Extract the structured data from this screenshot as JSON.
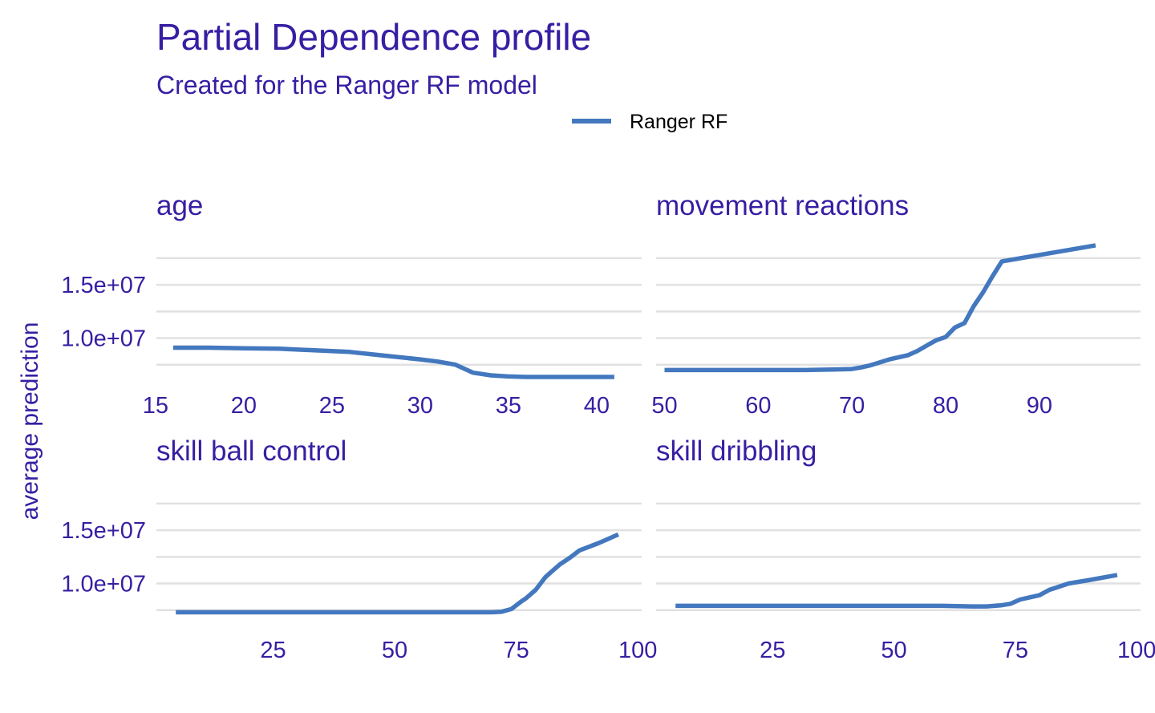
{
  "title": "Partial Dependence profile",
  "subtitle": "Created for the Ranger RF model",
  "ylabel": "average prediction",
  "legend": {
    "label": "Ranger RF",
    "color": "#4378bf",
    "position": "top"
  },
  "chart_data": {
    "type": "line",
    "title": "Partial Dependence profile",
    "subtitle": "Created for the Ranger RF model",
    "ylabel": "average prediction",
    "series_name": "Ranger RF",
    "color": "#4378bf",
    "grid": true,
    "ylim": [
      5750000,
      19900000
    ],
    "yticks": [
      {
        "value": 10000000,
        "label": "1.0e+07"
      },
      {
        "value": 15000000,
        "label": "1.5e+07"
      }
    ],
    "ygrid": [
      7500000,
      10000000,
      12500000,
      15000000,
      17500000
    ],
    "panels": [
      {
        "title": "age",
        "xlim": [
          15.05,
          42.55
        ],
        "xticks": [
          15,
          20,
          25,
          30,
          35,
          40
        ],
        "x": [
          16,
          18,
          20,
          22,
          24,
          26,
          28,
          30,
          31,
          32,
          33,
          34,
          35,
          36,
          37,
          38,
          39,
          40,
          41
        ],
        "y": [
          9100000,
          9100000,
          9050000,
          9000000,
          8850000,
          8700000,
          8350000,
          8000000,
          7800000,
          7500000,
          6750000,
          6500000,
          6400000,
          6350000,
          6350000,
          6350000,
          6350000,
          6350000,
          6350000
        ]
      },
      {
        "title": "movement  reactions",
        "xlim": [
          49.1,
          100.8
        ],
        "xticks": [
          50,
          60,
          70,
          80,
          90
        ],
        "x": [
          50,
          55,
          60,
          65,
          68,
          70,
          71,
          72,
          74,
          76,
          77,
          78,
          79,
          80,
          81,
          82,
          83,
          84,
          85,
          86,
          90,
          96
        ],
        "y": [
          7000000,
          7000000,
          7000000,
          7000000,
          7050000,
          7100000,
          7250000,
          7450000,
          8000000,
          8400000,
          8800000,
          9300000,
          9800000,
          10100000,
          11000000,
          11400000,
          13000000,
          14300000,
          15800000,
          17200000,
          17800000,
          18700000
        ]
      },
      {
        "title": "skill  ball  control",
        "xlim": [
          1,
          100.8
        ],
        "xticks": [
          25,
          50,
          75,
          100
        ],
        "x": [
          5,
          20,
          40,
          60,
          70,
          72,
          74,
          76,
          77,
          79,
          81,
          82,
          84,
          86,
          88,
          92,
          96
        ],
        "y": [
          7300000,
          7300000,
          7300000,
          7300000,
          7300000,
          7350000,
          7600000,
          8300000,
          8600000,
          9400000,
          10600000,
          11000000,
          11800000,
          12400000,
          13100000,
          13800000,
          14600000
        ]
      },
      {
        "title": "skill  dribbling",
        "xlim": [
          1,
          100.8
        ],
        "xticks": [
          25,
          50,
          75,
          100
        ],
        "x": [
          5,
          20,
          40,
          60,
          66,
          69,
          72,
          74,
          76,
          78,
          80,
          82,
          84,
          86,
          90,
          96
        ],
        "y": [
          7900000,
          7900000,
          7900000,
          7900000,
          7850000,
          7850000,
          7950000,
          8100000,
          8500000,
          8700000,
          8900000,
          9400000,
          9700000,
          10000000,
          10300000,
          10800000
        ]
      }
    ]
  }
}
